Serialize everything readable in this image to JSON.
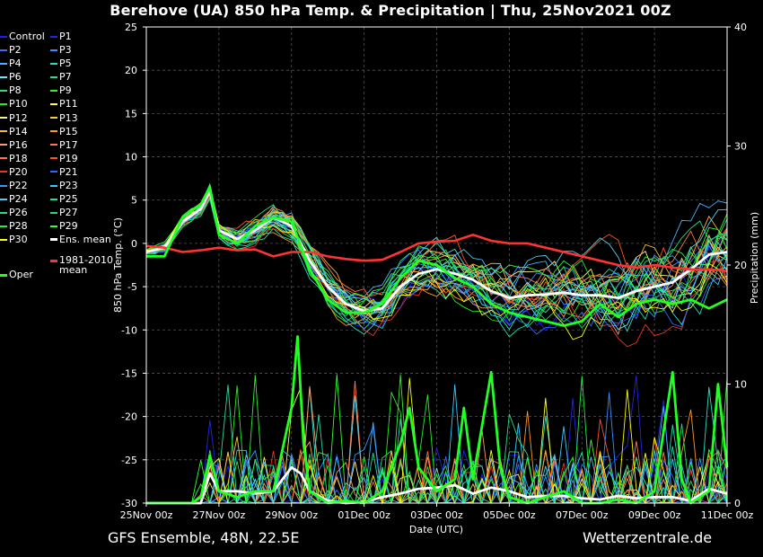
{
  "title": "Berehove  (UA)  850 hPa Temp. & Precipitation | Thu, 25Nov2021 00Z",
  "footer": {
    "left": "GFS Ensemble, 48N, 22.5E",
    "right": "Wetterzentrale.de"
  },
  "legend": {
    "pairs": [
      [
        {
          "label": "Control",
          "color": "#1a1aff"
        },
        {
          "label": "P1",
          "color": "#2525dd"
        }
      ],
      [
        {
          "label": "P2",
          "color": "#3a6cff"
        },
        {
          "label": "P3",
          "color": "#3a8cff"
        }
      ],
      [
        {
          "label": "P4",
          "color": "#4ab0ff"
        },
        {
          "label": "P5",
          "color": "#22e0c0"
        }
      ],
      [
        {
          "label": "P6",
          "color": "#66e6ff"
        },
        {
          "label": "P7",
          "color": "#22dd99"
        }
      ],
      [
        {
          "label": "P8",
          "color": "#33dd66"
        },
        {
          "label": "P9",
          "color": "#33ee33"
        }
      ],
      [
        {
          "label": "P10",
          "color": "#22ee22"
        },
        {
          "label": "P11",
          "color": "#ffff33"
        }
      ],
      [
        {
          "label": "P12",
          "color": "#ffee88"
        },
        {
          "label": "P13",
          "color": "#ffcc33"
        }
      ],
      [
        {
          "label": "P14",
          "color": "#ffb833"
        },
        {
          "label": "P15",
          "color": "#ff9922"
        }
      ],
      [
        {
          "label": "P16",
          "color": "#ff9966"
        },
        {
          "label": "P17",
          "color": "#ff7744"
        }
      ],
      [
        {
          "label": "P18",
          "color": "#ff7744"
        },
        {
          "label": "P19",
          "color": "#ff5522"
        }
      ],
      [
        {
          "label": "P20",
          "color": "#ee3322"
        },
        {
          "label": "P21",
          "color": "#3366ff"
        }
      ],
      [
        {
          "label": "P22",
          "color": "#3399ff"
        },
        {
          "label": "P23",
          "color": "#33ccff"
        }
      ],
      [
        {
          "label": "P24",
          "color": "#55ccee"
        },
        {
          "label": "P25",
          "color": "#22ddaa"
        }
      ],
      [
        {
          "label": "P26",
          "color": "#22dd88"
        },
        {
          "label": "P27",
          "color": "#22dd66"
        }
      ],
      [
        {
          "label": "P28",
          "color": "#22ee44"
        },
        {
          "label": "P29",
          "color": "#33ff33"
        }
      ],
      [
        {
          "label": "P30",
          "color": "#ffff00"
        },
        {
          "label": "Ens. mean",
          "color": "#ffffff"
        }
      ]
    ],
    "clim_label": [
      "1981-2010",
      "mean"
    ],
    "clim_color": "#ff3333",
    "oper_label": "Oper",
    "oper_color": "#22ff22"
  },
  "chart_data": {
    "type": "line",
    "ylabel_left": "850 hPa Temp. (°C)",
    "ylabel_right": "Precipitation (mm)",
    "xlabel": "Date (UTC)",
    "ylim_left": [
      -30,
      25
    ],
    "ylim_right": [
      0,
      40
    ],
    "yticks_left": [
      25,
      20,
      15,
      10,
      5,
      0,
      -5,
      -10,
      -15,
      -20,
      -25,
      -30
    ],
    "yticks_right": [
      40,
      30,
      20,
      10,
      0
    ],
    "x_tick_labels": [
      "25Nov 00z",
      "27Nov 00z",
      "29Nov 00z",
      "01Dec 00z",
      "03Dec 00z",
      "05Dec 00z",
      "07Dec 00z",
      "09Dec 00z",
      "11Dec 00z"
    ],
    "x_range_hours": [
      0,
      384
    ],
    "grid": true,
    "series": [
      {
        "name": "Ens. mean",
        "kind": "temp",
        "color": "#ffffff",
        "points": [
          [
            0,
            -1
          ],
          [
            12,
            -0.5
          ],
          [
            24,
            2.5
          ],
          [
            36,
            4
          ],
          [
            42,
            6
          ],
          [
            48,
            1.5
          ],
          [
            60,
            0.5
          ],
          [
            72,
            1.5
          ],
          [
            84,
            3
          ],
          [
            96,
            2
          ],
          [
            108,
            -2
          ],
          [
            120,
            -5
          ],
          [
            132,
            -7
          ],
          [
            144,
            -7.8
          ],
          [
            156,
            -7.5
          ],
          [
            168,
            -5
          ],
          [
            180,
            -3.5
          ],
          [
            192,
            -3
          ],
          [
            204,
            -3.5
          ],
          [
            216,
            -4.2
          ],
          [
            228,
            -5.5
          ],
          [
            240,
            -6.3
          ],
          [
            252,
            -6
          ],
          [
            264,
            -5.9
          ],
          [
            276,
            -5.7
          ],
          [
            288,
            -6
          ],
          [
            300,
            -6
          ],
          [
            312,
            -6.3
          ],
          [
            324,
            -5.5
          ],
          [
            336,
            -5
          ],
          [
            348,
            -4.5
          ],
          [
            360,
            -3
          ],
          [
            372,
            -1.3
          ],
          [
            384,
            -1
          ]
        ]
      },
      {
        "name": "1981-2010 mean",
        "kind": "temp",
        "color": "#ff3333",
        "points": [
          [
            0,
            -0.3
          ],
          [
            12,
            -0.5
          ],
          [
            24,
            -1
          ],
          [
            36,
            -0.8
          ],
          [
            48,
            -0.5
          ],
          [
            60,
            -0.8
          ],
          [
            72,
            -0.7
          ],
          [
            84,
            -1.5
          ],
          [
            96,
            -1
          ],
          [
            108,
            -1
          ],
          [
            120,
            -1.5
          ],
          [
            132,
            -1.8
          ],
          [
            144,
            -2
          ],
          [
            156,
            -1.9
          ],
          [
            168,
            -1
          ],
          [
            180,
            0
          ],
          [
            192,
            0.2
          ],
          [
            204,
            0.3
          ],
          [
            216,
            1
          ],
          [
            228,
            0.3
          ],
          [
            240,
            0
          ],
          [
            252,
            0
          ],
          [
            264,
            -0.5
          ],
          [
            276,
            -1
          ],
          [
            288,
            -1.5
          ],
          [
            300,
            -2
          ],
          [
            312,
            -2.5
          ],
          [
            324,
            -2.8
          ],
          [
            336,
            -2.5
          ],
          [
            348,
            -2.8
          ],
          [
            360,
            -3
          ],
          [
            372,
            -3
          ],
          [
            384,
            -3.2
          ]
        ]
      },
      {
        "name": "Oper",
        "kind": "temp",
        "color": "#22ff22",
        "points": [
          [
            0,
            -1.5
          ],
          [
            12,
            -1.5
          ],
          [
            24,
            3
          ],
          [
            36,
            4.5
          ],
          [
            42,
            6.5
          ],
          [
            48,
            1
          ],
          [
            60,
            0
          ],
          [
            72,
            2
          ],
          [
            84,
            3
          ],
          [
            96,
            2.5
          ],
          [
            108,
            -3
          ],
          [
            120,
            -6.5
          ],
          [
            132,
            -8
          ],
          [
            144,
            -8
          ],
          [
            156,
            -7
          ],
          [
            168,
            -4
          ],
          [
            180,
            -2
          ],
          [
            192,
            -2.5
          ],
          [
            204,
            -4
          ],
          [
            216,
            -5
          ],
          [
            228,
            -7
          ],
          [
            240,
            -8
          ],
          [
            252,
            -8.5
          ],
          [
            264,
            -9
          ],
          [
            276,
            -9.5
          ],
          [
            288,
            -9
          ],
          [
            300,
            -7
          ],
          [
            312,
            -8.5
          ],
          [
            324,
            -7
          ],
          [
            336,
            -6.5
          ],
          [
            348,
            -7
          ],
          [
            360,
            -6.5
          ],
          [
            372,
            -7.5
          ],
          [
            384,
            -6.5
          ]
        ]
      },
      {
        "name": "Ens. mean precip",
        "kind": "precip",
        "color": "#ffffff",
        "points": [
          [
            0,
            0
          ],
          [
            24,
            0
          ],
          [
            36,
            0
          ],
          [
            42,
            2.5
          ],
          [
            48,
            1
          ],
          [
            60,
            1
          ],
          [
            72,
            0.8
          ],
          [
            84,
            1
          ],
          [
            96,
            3
          ],
          [
            102,
            2.5
          ],
          [
            108,
            1
          ],
          [
            120,
            0.2
          ],
          [
            132,
            0
          ],
          [
            144,
            0.1
          ],
          [
            156,
            0.5
          ],
          [
            168,
            0.8
          ],
          [
            180,
            1.2
          ],
          [
            192,
            1.3
          ],
          [
            204,
            1.5
          ],
          [
            216,
            0.8
          ],
          [
            228,
            1.3
          ],
          [
            240,
            1
          ],
          [
            252,
            0.5
          ],
          [
            264,
            0.6
          ],
          [
            276,
            0.6
          ],
          [
            288,
            0.4
          ],
          [
            300,
            0.3
          ],
          [
            312,
            0.6
          ],
          [
            324,
            0.4
          ],
          [
            336,
            0.5
          ],
          [
            348,
            0.5
          ],
          [
            360,
            0.2
          ],
          [
            372,
            1.2
          ],
          [
            384,
            0.8
          ]
        ]
      },
      {
        "name": "Oper precip",
        "kind": "precip",
        "color": "#22ff22",
        "points": [
          [
            0,
            0
          ],
          [
            30,
            0
          ],
          [
            36,
            0.5
          ],
          [
            42,
            4
          ],
          [
            48,
            1
          ],
          [
            60,
            0.5
          ],
          [
            72,
            1
          ],
          [
            84,
            1
          ],
          [
            96,
            8
          ],
          [
            100,
            14
          ],
          [
            104,
            5
          ],
          [
            108,
            1
          ],
          [
            120,
            0
          ],
          [
            132,
            0.2
          ],
          [
            144,
            0
          ],
          [
            156,
            1
          ],
          [
            168,
            5
          ],
          [
            174,
            8
          ],
          [
            180,
            3
          ],
          [
            192,
            1
          ],
          [
            204,
            2
          ],
          [
            210,
            8
          ],
          [
            216,
            2
          ],
          [
            228,
            11
          ],
          [
            234,
            3
          ],
          [
            240,
            0.5
          ],
          [
            252,
            0
          ],
          [
            264,
            0.5
          ],
          [
            276,
            1
          ],
          [
            288,
            0
          ],
          [
            300,
            0
          ],
          [
            312,
            0.3
          ],
          [
            324,
            0
          ],
          [
            336,
            1
          ],
          [
            348,
            11
          ],
          [
            354,
            2
          ],
          [
            360,
            0
          ],
          [
            372,
            1
          ],
          [
            378,
            10
          ],
          [
            384,
            3
          ]
        ]
      }
    ]
  }
}
